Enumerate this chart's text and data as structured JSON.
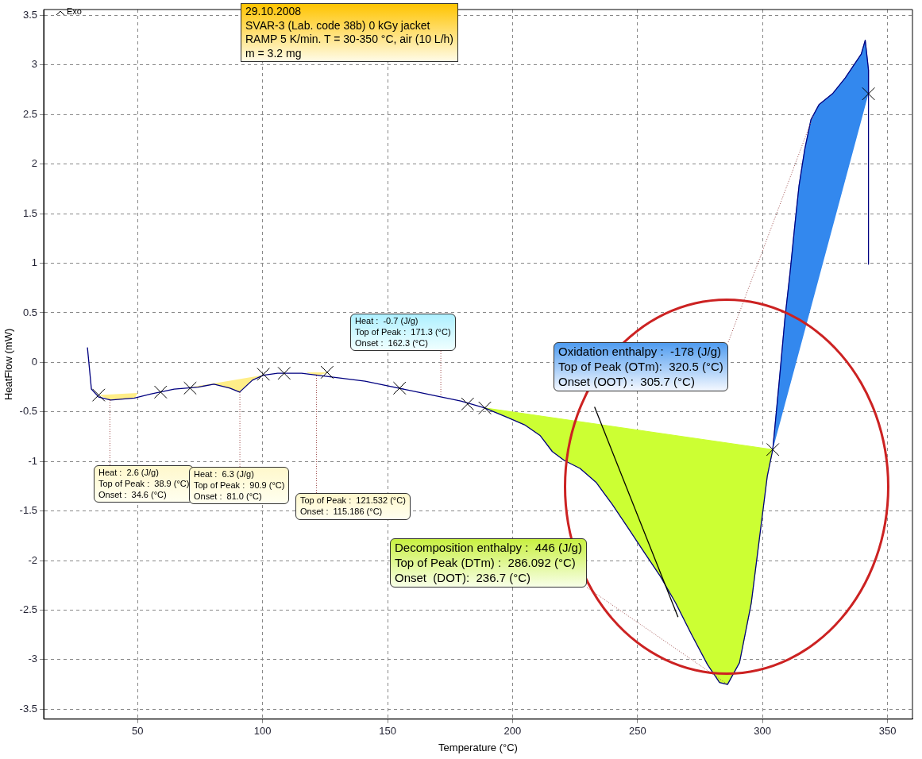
{
  "chart_data": {
    "type": "line",
    "xlabel": "Temperature (°C)",
    "ylabel": "HeatFlow (mW)",
    "xlim": [
      12.4,
      360
    ],
    "ylim": [
      -3.6,
      3.56
    ],
    "xticks": [
      50,
      100,
      150,
      200,
      250,
      300,
      350
    ],
    "yticks": [
      -3.5,
      -3,
      -2.5,
      -2,
      -1.5,
      -1,
      -0.5,
      0,
      0.5,
      1,
      1.5,
      2,
      2.5,
      3,
      3.5
    ],
    "grid": true,
    "series": [
      {
        "type": "area",
        "color": "#ffee88",
        "x": [
          35,
          39.2,
          48.7,
          49.8
        ],
        "values": [
          -0.33,
          -0.38,
          -0.36,
          -0.31
        ]
      },
      {
        "type": "area",
        "color": "#ffee88",
        "x": [
          71.6,
          74.2,
          80.5,
          86.9,
          90.8,
          95.9,
          99.7
        ],
        "values": [
          -0.25,
          -0.25,
          -0.22,
          -0.26,
          -0.3,
          -0.18,
          -0.13
        ]
      },
      {
        "type": "area",
        "color": "#ffee88",
        "x": [
          117.8,
          122,
          125.8
        ],
        "values": [
          -0.1,
          -0.13,
          -0.1
        ]
      },
      {
        "type": "area",
        "color": "#ccff33",
        "x": [
          188.9,
          198.4,
          204.8,
          211.1,
          215.9,
          220.7,
          227,
          233.4,
          239.8,
          246.2,
          252.5,
          258.9,
          265.3,
          271.7,
          278,
          282.8,
          286,
          290.8,
          295.5,
          298.7,
          301.9,
          304.1,
          188.9
        ],
        "values": [
          -0.46,
          -0.56,
          -0.63,
          -0.74,
          -0.9,
          -0.99,
          -1.07,
          -1.21,
          -1.43,
          -1.67,
          -1.91,
          -2.15,
          -2.43,
          -2.75,
          -3.05,
          -3.23,
          -3.25,
          -3.03,
          -2.43,
          -1.79,
          -1.15,
          -0.88,
          -0.46
        ]
      },
      {
        "type": "area",
        "color": "#3388ee",
        "x": [
          304.1,
          306.7,
          309,
          311,
          313,
          314.6,
          316.9,
          319.4,
          322.6,
          328,
          333.1,
          339.5,
          341.1,
          342.4,
          342.4
        ],
        "values": [
          -0.88,
          -0.19,
          0.45,
          0.9,
          1.4,
          1.78,
          2.15,
          2.45,
          2.6,
          2.71,
          2.87,
          3.11,
          3.25,
          2.95,
          2.71
        ]
      },
      {
        "color": "#000080",
        "x": [
          29.9,
          31.5,
          34.4,
          39.2,
          48.7,
          55.1,
          64.6,
          74.2,
          80.5,
          86.9,
          90.8,
          95.9,
          100.3,
          106,
          115.6,
          122,
          131.5,
          141,
          150.6,
          160.2,
          169.7,
          179.3,
          188.9,
          198.4,
          204.8,
          211.1,
          215.9,
          220.7,
          227,
          233.4,
          239.8,
          246.2,
          252.5,
          258.9,
          265.3,
          271.7,
          278,
          282.8,
          286,
          290.8,
          295.5,
          298.7,
          301.9,
          304.1,
          306.7,
          309,
          311,
          313,
          314.6,
          316.9,
          319.4,
          322.6,
          328,
          333.1,
          339.5,
          341.1,
          342.4,
          342.4
        ],
        "values": [
          0.15,
          -0.27,
          -0.35,
          -0.38,
          -0.36,
          -0.32,
          -0.27,
          -0.25,
          -0.22,
          -0.26,
          -0.3,
          -0.18,
          -0.13,
          -0.11,
          -0.11,
          -0.13,
          -0.16,
          -0.19,
          -0.24,
          -0.29,
          -0.34,
          -0.39,
          -0.46,
          -0.56,
          -0.63,
          -0.74,
          -0.9,
          -0.99,
          -1.07,
          -1.21,
          -1.43,
          -1.67,
          -1.91,
          -2.15,
          -2.43,
          -2.75,
          -3.05,
          -3.23,
          -3.25,
          -3.03,
          -2.43,
          -1.79,
          -1.15,
          -0.88,
          -0.19,
          0.45,
          0.9,
          1.4,
          1.78,
          2.15,
          2.45,
          2.6,
          2.71,
          2.87,
          3.11,
          3.25,
          2.95,
          0.99
        ]
      },
      {
        "type": "line",
        "color": "#000000",
        "x": [
          232.8,
          266.2
        ],
        "values": [
          -0.45,
          -2.57
        ]
      },
      {
        "type": "scatter",
        "marker": "cross",
        "color": "#000000",
        "x": [
          34.4,
          59.2,
          71,
          100.3,
          108.6,
          125.8,
          154.8,
          182,
          188.9,
          304.1,
          342.4
        ],
        "values": [
          -0.33,
          -0.3,
          -0.26,
          -0.12,
          -0.11,
          -0.1,
          -0.26,
          -0.42,
          -0.46,
          -0.88,
          2.71
        ]
      }
    ],
    "annotations": [
      "Exo",
      "29.10.2008\nSVAR-3 (Lab. code 38b) 0 kGy jacket\nRAMP 5 K/min. T = 30-350 °C, air (10 L/h)\nm = 3.2 mg",
      {
        "text": "Heat :  2.6 (J/g)\nTop of Peak :  38.9 (°C)\nOnset :  34.6 (°C)",
        "x": 38.9,
        "y": -0.38
      },
      {
        "text": "Heat :  6.3 (J/g)\nTop of Peak :  90.9 (°C)\nOnset :  81.0 (°C)",
        "x": 90.9,
        "y": -0.3
      },
      {
        "text": "Top of Peak :  121.532 (°C)\nOnset :  115.186 (°C)",
        "x": 121.532,
        "y": -0.13
      },
      {
        "text": "Heat :  -0.7 (J/g)\nTop of Peak :  171.3 (°C)\nOnset :  162.3 (°C)",
        "x": 171.3,
        "y": -0.34
      },
      {
        "text": "Oxidation enthalpy :  -178 (J/g)\nTop of Peak (OTm):  320.5 (°C)\nOnset (OOT) :  305.7 (°C)",
        "x": 320.5,
        "y": 2.5
      },
      {
        "text": "Decomposition enthalpy :  446 (J/g)\nTop of Peak (DTm) :  286.092 (°C)\nOnset  (DOT):  236.7 (°C)",
        "x": 286.092,
        "y": -3.25
      }
    ]
  }
}
